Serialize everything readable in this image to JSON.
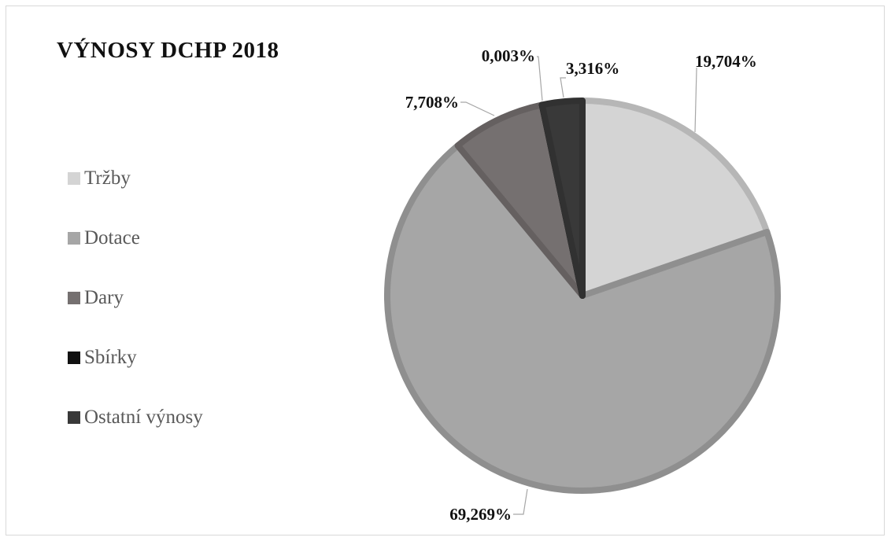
{
  "chart_data": {
    "type": "pie",
    "title": "VÝNOSY DCHP 2018",
    "categories": [
      "Tržby",
      "Dotace",
      "Dary",
      "Sbírky",
      "Ostatní výnosy"
    ],
    "values": [
      19.704,
      69.269,
      7.708,
      0.003,
      3.316
    ],
    "data_labels": [
      "19,704%",
      "69,269%",
      "7,708%",
      "0,003%",
      "3,316%"
    ],
    "colors": [
      "#d4d4d4",
      "#a6a6a6",
      "#757070",
      "#111111",
      "#393939"
    ],
    "legend_position": "left"
  }
}
